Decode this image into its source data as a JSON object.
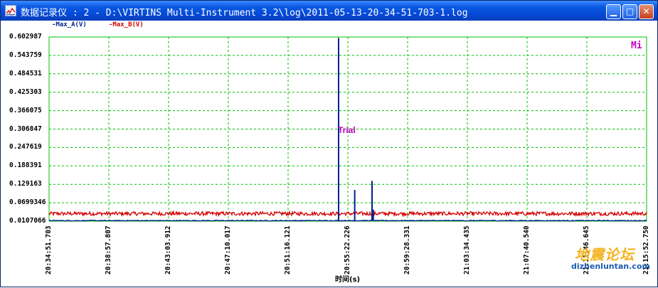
{
  "window": {
    "title": "数据记录仪 : 2 - D:\\VIRTINS Multi-Instrument 3.2\\log\\2011-05-13-20-34-51-703-1.log",
    "buttons": {
      "minimize": "▁",
      "maximize": "□",
      "close": "✕"
    }
  },
  "legend": {
    "series_a": "-Max_A(V)",
    "series_b": "-Max_B(V)"
  },
  "corner_label": "Mi",
  "watermark": {
    "trial": "Trial",
    "logo_text": "地震论坛",
    "site": "dizhenluntan.com"
  },
  "colors": {
    "background": "#ffffff",
    "plot_border": "#00c000",
    "grid": "#00c000",
    "series_a": "#001f8f",
    "series_b": "#d40000",
    "trial_text": "#c000c0",
    "corner_label": "#c000c0"
  },
  "chart_data": {
    "type": "line",
    "xlabel": "时间(s)",
    "ylabel": "",
    "grid": true,
    "y_ticks": [
      "0.602987",
      "0.543759",
      "0.484531",
      "0.425303",
      "0.366075",
      "0.306847",
      "0.247619",
      "0.188391",
      "0.129163",
      "0.0699346",
      "0.0107066"
    ],
    "ylim": [
      0.0107066,
      0.602987
    ],
    "x_ticks": [
      "20:34:51.703",
      "20:38:57.807",
      "20:43:03.912",
      "20:47:10.017",
      "20:51:16.121",
      "20:55:22.226",
      "20:59:28.331",
      "21:03:34.435",
      "21:07:40.540",
      "21:11:46.645",
      "21:15:52.750"
    ],
    "series": [
      {
        "name": "Max_B(V)",
        "baseline": 0.035,
        "noise": 0.006,
        "spikes": []
      },
      {
        "name": "Max_A(V)",
        "baseline": 0.0125,
        "noise": 0.0015,
        "spikes": [
          {
            "x_fraction": 0.4845,
            "value": 0.6
          },
          {
            "x_fraction": 0.5115,
            "value": 0.111
          },
          {
            "x_fraction": 0.5405,
            "value": 0.14
          },
          {
            "x_fraction": 0.5425,
            "value": 0.048
          }
        ]
      }
    ]
  }
}
